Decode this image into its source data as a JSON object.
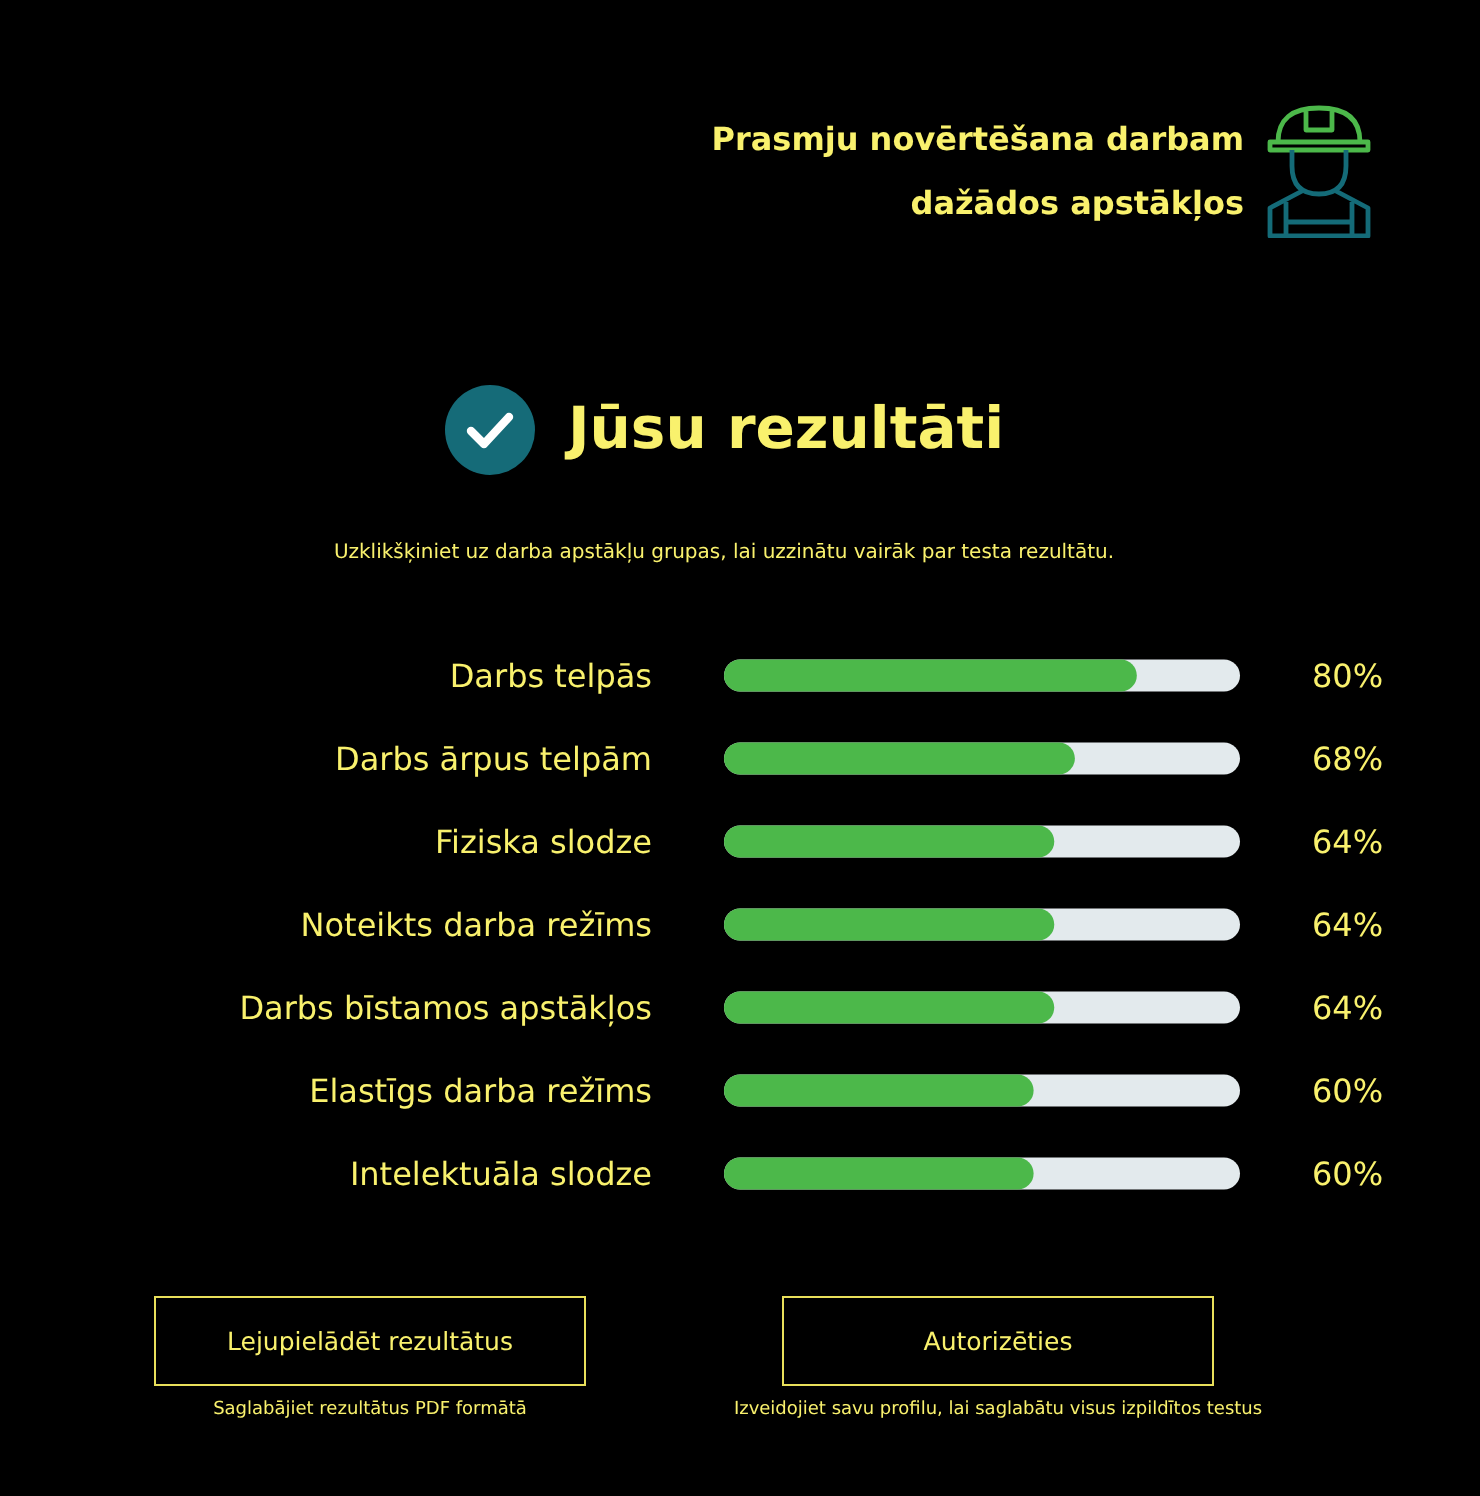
{
  "chart_data": {
    "type": "bar",
    "orientation": "horizontal",
    "title": "Jūsu rezultāti",
    "subtitle": "Uzklikšķiniet uz darba apstākļu grupas, lai uzzinātu vairāk par testa rezultātu.",
    "categories": [
      "Darbs telpās",
      "Darbs ārpus telpām",
      "Fiziska slodze",
      "Noteikts darba režīms",
      "Darbs bīstamos apstākļos",
      "Elastīgs darba režīms",
      "Intelektuāla slodze"
    ],
    "values": [
      80,
      68,
      64,
      64,
      64,
      60,
      60
    ],
    "color": "#4cb84a",
    "value_labels": [
      "80%",
      "68%",
      "64%",
      "64%",
      "64%",
      "60%",
      "60%"
    ],
    "xlim": [
      0,
      100
    ],
    "tick_labels": "y",
    "annotations": [
      "Prasmju novērtēšana darbam dažādos apstākļos",
      "Lejupielādēt rezultātus",
      "Saglabājiet rezultātus PDF formātā",
      "Autorizēties",
      "Izveidojiet savu profilu, lai saglabātu visus izpildītos testus"
    ]
  }
}
